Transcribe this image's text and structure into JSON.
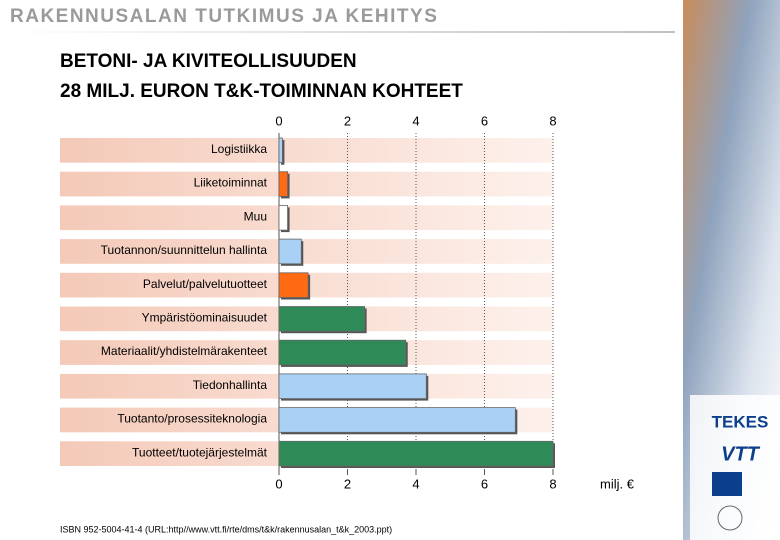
{
  "header": "RAKENNUSALAN TUTKIMUS JA KEHITYS",
  "chart_data": {
    "type": "hbar",
    "title": "BETONI- JA KIVITEOLLISUUDEN",
    "subtitle": "28 MILJ. EURON T&K-TOIMINNAN KOHTEET",
    "categories": [
      "Logistiikka",
      "Liiketoiminnat",
      "Muu",
      "Tuotannon/suunnittelun hallinta",
      "Palvelut/palvelutuotteet",
      "Ympäristöominaisuudet",
      "Materiaalit/yhdistelmärakenteet",
      "Tiedonhallinta",
      "Tuotanto/prosessiteknologia",
      "Tuotteet/tuotejärjestelmät"
    ],
    "values": [
      0.1,
      0.25,
      0.25,
      0.65,
      0.85,
      2.5,
      3.7,
      4.3,
      6.9,
      8.0
    ],
    "colors": [
      "#a9d0f5",
      "#ff6a13",
      "#ffffff",
      "#a9d0f5",
      "#ff6a13",
      "#2e8b57",
      "#2e8b57",
      "#a9d0f5",
      "#a9d0f5",
      "#2e8b57"
    ],
    "xlim": [
      0,
      8
    ],
    "xticks": [
      0,
      2,
      4,
      6,
      8
    ],
    "xlabel": "milj. €",
    "grid": true
  },
  "footer": "ISBN 952-5004-41-4 (URL:http//www.vtt.fi/rte/dms/t&k/rakennusalan_t&k_2003.ppt)",
  "logos": [
    "TEKES",
    "VTT"
  ]
}
